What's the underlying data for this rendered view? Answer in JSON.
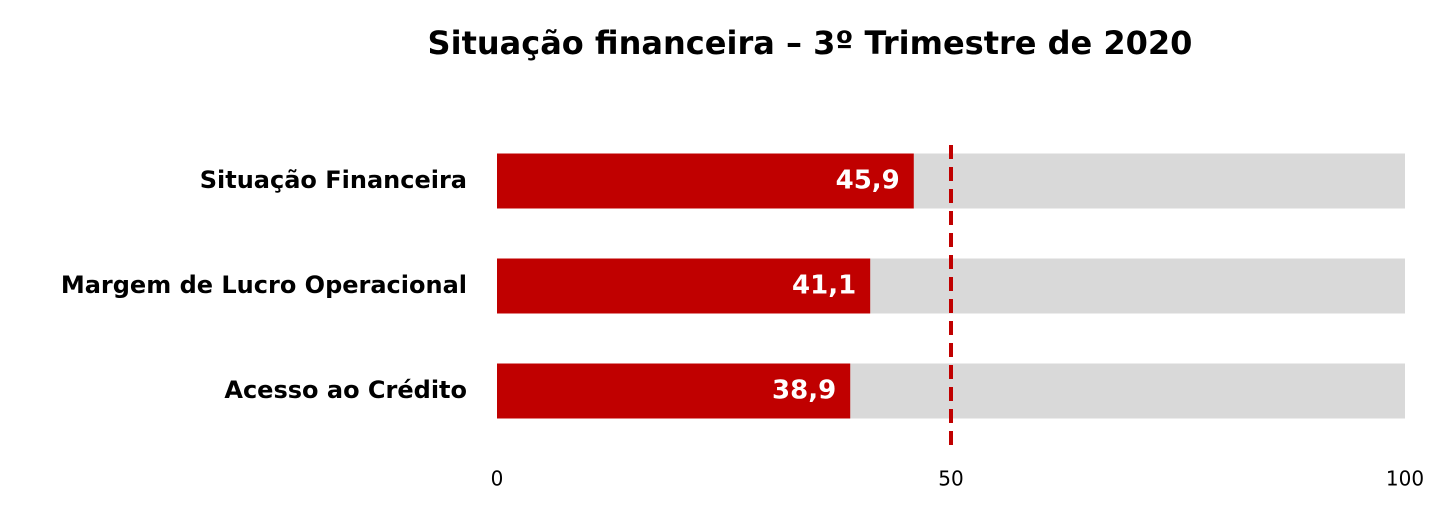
{
  "chart_data": {
    "type": "bar",
    "title": "Situação financeira – 3º Trimestre de 2020",
    "categories": [
      "Situação Financeira",
      "Margem de Lucro Operacional",
      "Acesso ao Crédito"
    ],
    "values": [
      45.9,
      41.1,
      38.9
    ],
    "value_labels": [
      "45,9",
      "41,1",
      "38,9"
    ],
    "color": "#c00000",
    "background_color": "#d9d9d9",
    "xlim": [
      0,
      100
    ],
    "xticks": [
      0,
      50,
      100
    ],
    "reference_line": 50,
    "reference_color": "#c00000"
  }
}
